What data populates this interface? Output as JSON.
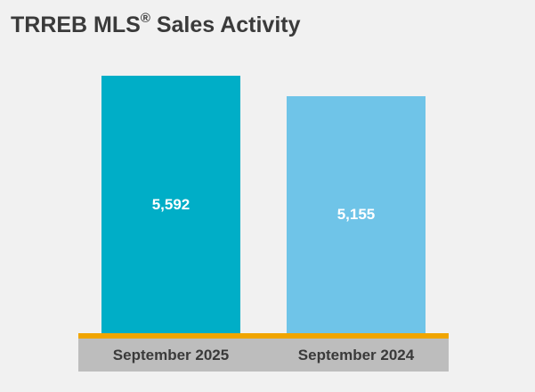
{
  "chart_data": {
    "type": "bar",
    "title": "TRREB MLS",
    "title_mark": "®",
    "title_suffix": "Sales Activity",
    "categories": [
      "September 2025",
      "September 2024"
    ],
    "values": [
      5592,
      5155
    ],
    "data_labels": [
      "5,592",
      "5,155"
    ],
    "xlabel": "",
    "ylabel": "",
    "ylim": [
      0,
      6000
    ],
    "grid": false,
    "legend": "none"
  },
  "colors": {
    "bars": [
      "#00aec7",
      "#6fc4e8"
    ],
    "baseline": "#f0a500",
    "label_band": "#bdbdbd",
    "background": "#f1f1f1"
  }
}
